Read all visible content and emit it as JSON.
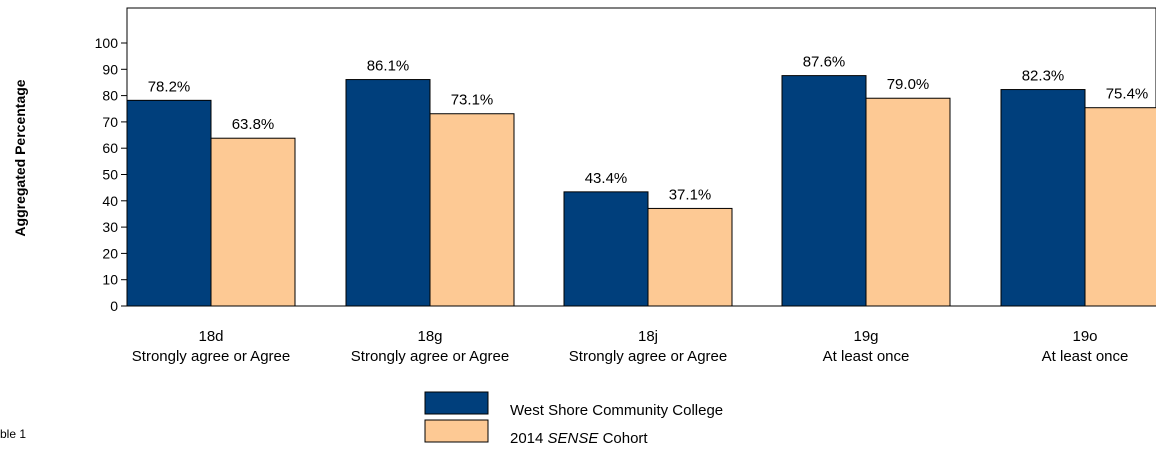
{
  "chart_data": {
    "type": "bar",
    "ylabel": "Aggregated Percentage",
    "ylim": [
      0,
      100
    ],
    "yticks": [
      0,
      10,
      20,
      30,
      40,
      50,
      60,
      70,
      80,
      90,
      100
    ],
    "categories": [
      {
        "code": "18d",
        "label": "Strongly agree or Agree"
      },
      {
        "code": "18g",
        "label": "Strongly agree or Agree"
      },
      {
        "code": "18j",
        "label": "Strongly agree or Agree"
      },
      {
        "code": "19g",
        "label": "At least once"
      },
      {
        "code": "19o",
        "label": "At least once"
      }
    ],
    "series": [
      {
        "name": "West Shore Community College",
        "color": "#003f7c",
        "values": [
          78.2,
          86.1,
          43.4,
          87.6,
          82.3
        ],
        "labels": [
          "78.2%",
          "86.1%",
          "43.4%",
          "87.6%",
          "82.3%"
        ]
      },
      {
        "name_prefix": "2014 ",
        "name_italic": "SENSE",
        "name_suffix": " Cohort",
        "color": "#fdc994",
        "values": [
          63.8,
          73.1,
          37.1,
          79.0,
          75.4
        ],
        "labels": [
          "63.8%",
          "73.1%",
          "37.1%",
          "79.0%",
          "75.4%"
        ]
      }
    ],
    "grid": false,
    "legend_position": "bottom-center"
  },
  "footnote": "ble 1"
}
